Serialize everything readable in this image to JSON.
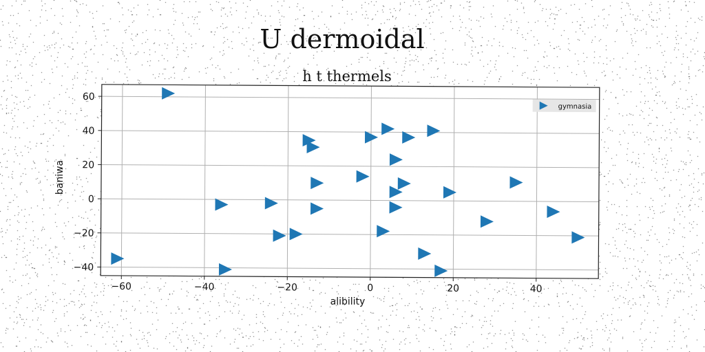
{
  "chart_data": {
    "type": "scatter",
    "title": "U dermoidal",
    "subtitle": "h t thermels",
    "xlabel": "alibility",
    "ylabel": "baniwa",
    "xlim": [
      -65,
      55
    ],
    "ylim": [
      -45,
      67
    ],
    "xticks": [
      -60,
      -40,
      -20,
      0,
      20,
      40
    ],
    "yticks": [
      60,
      40,
      20,
      0,
      -20,
      -40
    ],
    "grid": true,
    "legend_position": "top-right",
    "marker": "triangle-right",
    "color": "#1f77b4",
    "series": [
      {
        "name": "gymnasia",
        "points": [
          [
            -49,
            62
          ],
          [
            -15,
            35
          ],
          [
            -14,
            31
          ],
          [
            0,
            37
          ],
          [
            4,
            42
          ],
          [
            9,
            37
          ],
          [
            15,
            41
          ],
          [
            6,
            24
          ],
          [
            -2,
            14
          ],
          [
            -13,
            10
          ],
          [
            8,
            10
          ],
          [
            6,
            5
          ],
          [
            19,
            5
          ],
          [
            35,
            11
          ],
          [
            -36,
            -3
          ],
          [
            -24,
            -2
          ],
          [
            -13,
            -5
          ],
          [
            6,
            -4
          ],
          [
            44,
            -6
          ],
          [
            28,
            -12
          ],
          [
            3,
            -18
          ],
          [
            -22,
            -21
          ],
          [
            -18,
            -20
          ],
          [
            50,
            -21
          ],
          [
            13,
            -31
          ],
          [
            -61,
            -35
          ],
          [
            -35,
            -41
          ],
          [
            17,
            -41
          ]
        ]
      }
    ]
  }
}
